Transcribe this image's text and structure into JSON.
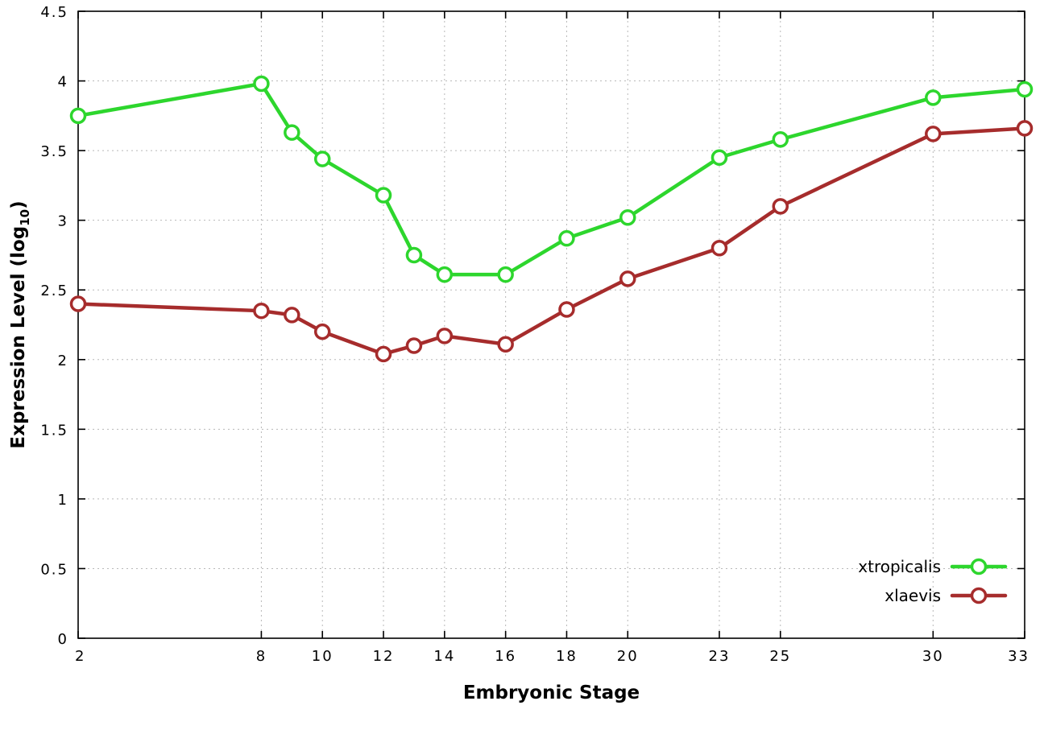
{
  "chart_data": {
    "type": "line",
    "title": "",
    "xlabel": "Embryonic Stage",
    "ylabel_parts": {
      "main": "Expression Level (log",
      "sub": "10",
      "close": ")"
    },
    "xlim": [
      2,
      33
    ],
    "ylim": [
      0,
      4.5
    ],
    "grid": true,
    "legend_position": "bottom-right",
    "x_ticks": [
      2,
      8,
      10,
      12,
      14,
      16,
      18,
      20,
      23,
      25,
      30,
      33
    ],
    "x_tick_labels": [
      "2",
      "8",
      "10",
      "12",
      "14",
      "16",
      "18",
      "20",
      "23",
      "25",
      "30",
      "33"
    ],
    "y_ticks": [
      0,
      0.5,
      1,
      1.5,
      2,
      2.5,
      3,
      3.5,
      4,
      4.5
    ],
    "y_tick_labels": [
      "0",
      "0.5",
      "1",
      "1.5",
      "2",
      "2.5",
      "3",
      "3.5",
      "4",
      "4.5"
    ],
    "x": [
      2,
      8,
      9,
      10,
      12,
      13,
      14,
      16,
      18,
      20,
      23,
      25,
      30,
      33
    ],
    "series": [
      {
        "name": "xtropicalis",
        "color": "#2dd62d",
        "values": [
          3.75,
          3.98,
          3.63,
          3.44,
          3.18,
          2.75,
          2.61,
          2.61,
          2.87,
          3.02,
          3.45,
          3.58,
          3.88,
          3.94
        ]
      },
      {
        "name": "xlaevis",
        "color": "#a62c2c",
        "values": [
          2.4,
          2.35,
          2.32,
          2.2,
          2.04,
          2.1,
          2.17,
          2.11,
          2.36,
          2.58,
          2.8,
          3.1,
          3.62,
          3.66
        ]
      }
    ]
  }
}
